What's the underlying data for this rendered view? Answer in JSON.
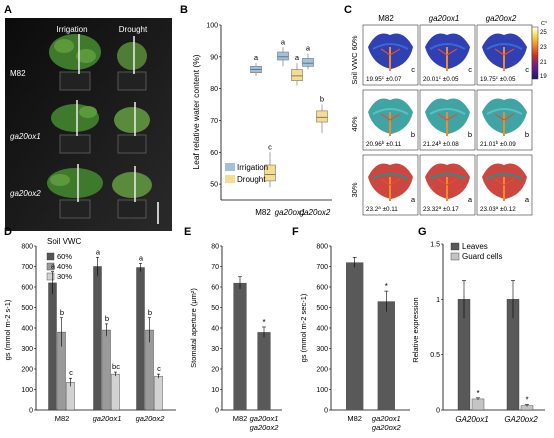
{
  "panels": {
    "A": {
      "letter": "A",
      "col_labels": [
        "Irrigation",
        "Drought"
      ],
      "row_labels": [
        "M82",
        "ga20ox1",
        "ga20ox2"
      ]
    },
    "B": {
      "letter": "B",
      "ylabel": "Leaf relative water content (%)",
      "yticks": [
        "50",
        "60",
        "70",
        "80",
        "90",
        "100"
      ],
      "legend": [
        "Irrigation",
        "Drought"
      ],
      "colors": {
        "irrigation": "#9ec1de",
        "drought": "#f5dc8e"
      }
    },
    "C": {
      "letter": "C",
      "col_labels": [
        "M82",
        "ga20ox1",
        "ga20ox2"
      ],
      "row_labels": [
        "Soil VWC 60%",
        "40%",
        "30%"
      ],
      "colorbar_ticks": [
        "25",
        "23",
        "21",
        "19"
      ],
      "colorbar_unit": "C°",
      "cells": [
        {
          "temp": "19.95",
          "sup": "c",
          "err": "±0.07",
          "letter": "c"
        },
        {
          "temp": "20.01",
          "sup": "c",
          "err": "±0.05",
          "letter": "c"
        },
        {
          "temp": "19.75",
          "sup": "c",
          "err": "±0.05",
          "letter": "c"
        },
        {
          "temp": "20.96",
          "sup": "b",
          "err": "±0.11",
          "letter": "b"
        },
        {
          "temp": "21.24",
          "sup": "b",
          "err": "±0.08",
          "letter": "b"
        },
        {
          "temp": "21.01",
          "sup": "b",
          "err": "±0.09",
          "letter": "b"
        },
        {
          "temp": "23.2",
          "sup": "a",
          "err": "±0.11",
          "letter": "a"
        },
        {
          "temp": "23.32",
          "sup": "a",
          "err": "±0.17",
          "letter": "a"
        },
        {
          "temp": "23.03",
          "sup": "a",
          "err": "±0.12",
          "letter": "a"
        }
      ]
    },
    "D": {
      "letter": "D"
    },
    "E": {
      "letter": "E"
    },
    "F": {
      "letter": "F"
    },
    "G": {
      "letter": "G"
    }
  },
  "chart_data": [
    {
      "panel": "B",
      "type": "box",
      "categories": [
        "M82",
        "ga20ox1",
        "ga20ox2"
      ],
      "ylabel": "Leaf relative water content (%)",
      "ylim": [
        45,
        100
      ],
      "series": [
        {
          "name": "Irrigation",
          "medians": [
            86,
            90,
            88
          ],
          "q1": [
            85,
            89,
            87
          ],
          "q3": [
            87,
            91.5,
            89.5
          ],
          "whisker_low": [
            84,
            87,
            86
          ],
          "whisker_high": [
            88,
            93,
            91
          ],
          "letters": [
            "a",
            "a",
            "a"
          ]
        },
        {
          "name": "Drought",
          "medians": [
            53,
            84,
            71
          ],
          "q1": [
            51,
            82.5,
            69.5
          ],
          "q3": [
            56,
            86,
            73
          ],
          "whisker_low": [
            49,
            81,
            66
          ],
          "whisker_high": [
            60,
            88,
            75
          ],
          "letters": [
            "c",
            "a",
            "b"
          ]
        }
      ]
    },
    {
      "panel": "D",
      "type": "bar",
      "title": "Soil VWC",
      "categories": [
        "M82",
        "ga20ox1",
        "ga20ox2"
      ],
      "ylabel": "gs (mmol m-2 s-1)",
      "ylim": [
        0,
        800
      ],
      "yticks": [
        0,
        100,
        200,
        300,
        400,
        500,
        600,
        700,
        800
      ],
      "series": [
        {
          "name": "60%",
          "color": "#555555",
          "values": [
            620,
            700,
            695
          ],
          "errors": [
            55,
            45,
            20
          ],
          "letters": [
            "a",
            "a",
            "a"
          ]
        },
        {
          "name": "40%",
          "color": "#9a9a9a",
          "values": [
            380,
            390,
            390
          ],
          "errors": [
            70,
            30,
            60
          ],
          "letters": [
            "b",
            "b",
            "b"
          ]
        },
        {
          "name": "30%",
          "color": "#d2d2d2",
          "values": [
            135,
            175,
            165
          ],
          "errors": [
            20,
            10,
            10
          ],
          "letters": [
            "c",
            "bc",
            "c"
          ]
        }
      ]
    },
    {
      "panel": "E",
      "type": "bar",
      "categories": [
        "M82",
        "ga20ox1 ga20ox2"
      ],
      "ylabel": "Stomatal aperture (μm²)",
      "ylim": [
        0,
        80
      ],
      "yticks": [
        0,
        10,
        20,
        30,
        40,
        50,
        60,
        70,
        80
      ],
      "values": [
        62,
        38
      ],
      "errors": [
        3,
        2.5
      ],
      "marks": [
        "",
        "*"
      ],
      "color": "#595959"
    },
    {
      "panel": "F",
      "type": "bar",
      "categories": [
        "M82",
        "ga20ox1 ga20ox2"
      ],
      "ylabel": "gs (mmol m-2 sec-1)",
      "ylim": [
        0,
        800
      ],
      "yticks": [
        0,
        100,
        200,
        300,
        400,
        500,
        600,
        700,
        800
      ],
      "values": [
        720,
        530
      ],
      "errors": [
        25,
        50
      ],
      "marks": [
        "",
        "*"
      ],
      "color": "#595959"
    },
    {
      "panel": "G",
      "type": "bar",
      "categories": [
        "GA20ox1",
        "GA20ox2"
      ],
      "ylabel": "Relative expression",
      "ylim": [
        0,
        1.5
      ],
      "yticks": [
        0,
        0.5,
        1,
        1.5
      ],
      "series": [
        {
          "name": "Leaves",
          "color": "#595959",
          "values": [
            1.0,
            1.0
          ],
          "errors": [
            0.17,
            0.17
          ],
          "marks": [
            "",
            ""
          ]
        },
        {
          "name": "Guard cells",
          "color": "#c4c4c4",
          "values": [
            0.1,
            0.04
          ],
          "errors": [
            0.01,
            0.01
          ],
          "marks": [
            "*",
            "*"
          ]
        }
      ]
    }
  ]
}
